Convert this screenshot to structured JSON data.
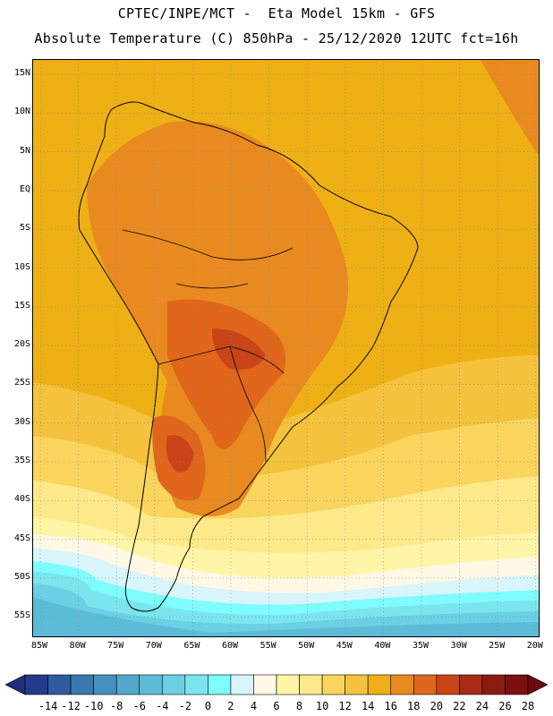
{
  "header": {
    "line1": "CPTEC/INPE/MCT -  Eta Model 15km - GFS",
    "line2": "Absolute Temperature (C) 850hPa - 25/12/2020 12UTC fct=16h"
  },
  "map": {
    "latitude_labels": [
      "15N",
      "10N",
      "5N",
      "EQ",
      "5S",
      "10S",
      "15S",
      "20S",
      "25S",
      "30S",
      "35S",
      "40S",
      "45S",
      "50S",
      "55S"
    ],
    "longitude_labels": [
      "85W",
      "80W",
      "75W",
      "70W",
      "65W",
      "60W",
      "55W",
      "50W",
      "45W",
      "40W",
      "35W",
      "30W",
      "25W",
      "20W"
    ],
    "grid_style": "dotted"
  },
  "colorbar": {
    "labels": [
      "-14",
      "-12",
      "-10",
      "-8",
      "-6",
      "-4",
      "-2",
      "0",
      "2",
      "4",
      "6",
      "8",
      "10",
      "12",
      "14",
      "16",
      "18",
      "20",
      "22",
      "24",
      "26",
      "28"
    ],
    "colors": [
      "#243a8c",
      "#2e5c9e",
      "#3a78b0",
      "#4590bf",
      "#51a8cc",
      "#5cbcd8",
      "#6bd0e4",
      "#7be5ee",
      "#7ffcfd",
      "#d7f5fb",
      "#fff8e4",
      "#fff5a6",
      "#fde98a",
      "#f9d55e",
      "#f4c23c",
      "#efb016",
      "#e88a20",
      "#e0661c",
      "#c94418",
      "#a92c14",
      "#8c1c10",
      "#7a1010"
    ]
  }
}
